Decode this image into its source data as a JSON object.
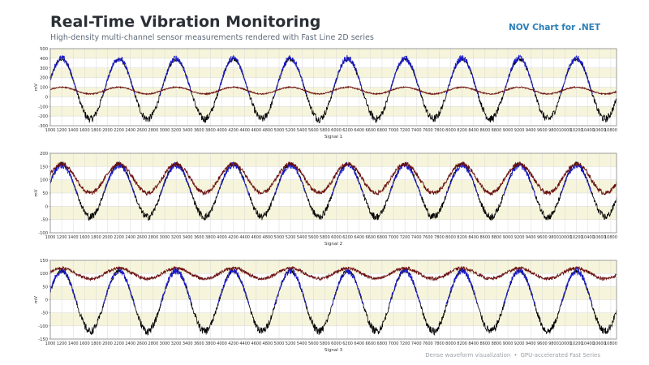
{
  "header": {
    "title": "Real-Time Vibration Monitoring",
    "subtitle": "High-density multi-channel sensor measurements rendered with Fast Line 2D series",
    "brand": "NOV Chart for .NET"
  },
  "footer": {
    "left": "Dense waveform visualization",
    "separator": "•",
    "right": "GPU-accelerated Fast Series"
  },
  "colors": {
    "band": "#f6f5dc",
    "grid": "#d8d8d8",
    "axis": "#888888",
    "series_blue": "#1a1acc",
    "series_black": "#000000",
    "series_dark_red": "#6b1010"
  },
  "x_ticks": [
    1000,
    1200,
    1400,
    1600,
    1800,
    2000,
    2200,
    2400,
    2600,
    2800,
    3000,
    3200,
    3400,
    3600,
    3800,
    4000,
    4200,
    4400,
    4600,
    4800,
    5000,
    5200,
    5400,
    5600,
    5800,
    6000,
    6200,
    6400,
    6600,
    6800,
    7000,
    7200,
    7400,
    7600,
    7800,
    8000,
    8200,
    8400,
    8600,
    8800,
    9000,
    9200,
    9400,
    9600,
    9800,
    10000,
    10200,
    10400,
    10600,
    10800
  ],
  "chart_data": [
    {
      "type": "line",
      "title": "",
      "xlabel": "Signal 1",
      "ylabel": "mV",
      "xlim": [
        1000,
        10900
      ],
      "ylim": [
        -300,
        500
      ],
      "y_ticks": [
        -300,
        -200,
        -100,
        0,
        100,
        200,
        300,
        400,
        500
      ],
      "period": 1000,
      "phase_x": 1200,
      "series": [
        {
          "name": "",
          "color": "blue",
          "mean": 80,
          "amplitude": 320,
          "noise": 35,
          "profile": "upper"
        },
        {
          "name": "",
          "color": "black",
          "mean": 80,
          "amplitude": 310,
          "noise": 40,
          "profile": "lower"
        },
        {
          "name": "",
          "color": "dark_red",
          "mean": 65,
          "amplitude": 35,
          "noise": 6,
          "profile": "full"
        }
      ]
    },
    {
      "type": "line",
      "title": "",
      "xlabel": "Signal 2",
      "ylabel": "mV",
      "xlim": [
        1000,
        10900
      ],
      "ylim": [
        -100,
        200
      ],
      "y_ticks": [
        -100,
        -50,
        0,
        50,
        100,
        150,
        200
      ],
      "period": 1000,
      "phase_x": 1200,
      "series": [
        {
          "name": "",
          "color": "blue",
          "mean": 60,
          "amplitude": 95,
          "noise": 12,
          "profile": "upper"
        },
        {
          "name": "",
          "color": "black",
          "mean": 60,
          "amplitude": 100,
          "noise": 14,
          "profile": "lower"
        },
        {
          "name": "",
          "color": "dark_red",
          "mean": 105,
          "amplitude": 55,
          "noise": 8,
          "profile": "full"
        }
      ]
    },
    {
      "type": "line",
      "title": "",
      "xlabel": "Signal 3",
      "ylabel": "mV",
      "xlim": [
        1000,
        10900
      ],
      "ylim": [
        -150,
        150
      ],
      "y_ticks": [
        -150,
        -100,
        -50,
        0,
        50,
        100,
        150
      ],
      "period": 1000,
      "phase_x": 1200,
      "series": [
        {
          "name": "",
          "color": "blue",
          "mean": 0,
          "amplitude": 110,
          "noise": 14,
          "profile": "upper"
        },
        {
          "name": "",
          "color": "black",
          "mean": -5,
          "amplitude": 115,
          "noise": 15,
          "profile": "lower"
        },
        {
          "name": "",
          "color": "dark_red",
          "mean": 100,
          "amplitude": 20,
          "noise": 6,
          "profile": "full"
        }
      ]
    }
  ]
}
